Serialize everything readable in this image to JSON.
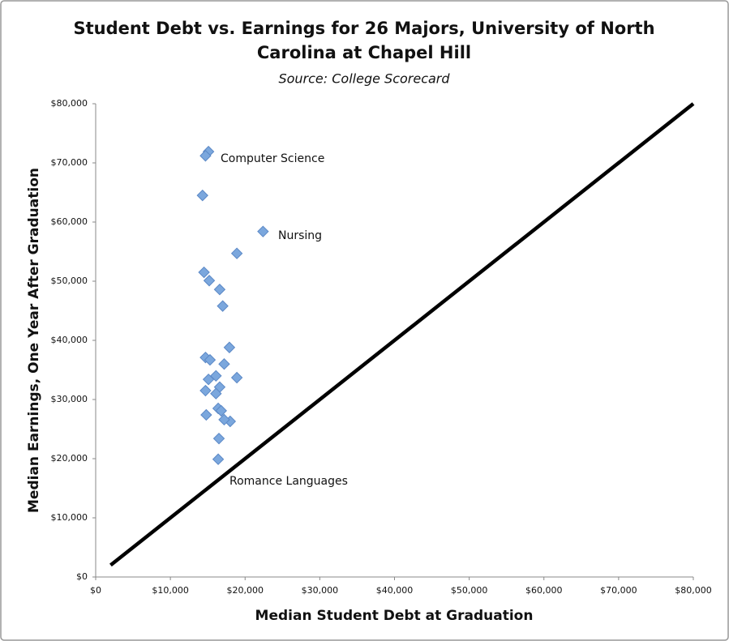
{
  "chart_data": {
    "type": "scatter",
    "title": "Student Debt vs. Earnings for 26 Majors, University of North Carolina at Chapel Hill",
    "subtitle": "Source: College Scorecard",
    "x_label": "Median Student Debt at Graduation",
    "y_label": "Median Earnings, One Year After Graduation",
    "series": [
      {
        "color": "#7ba7dd",
        "x": [
          15100,
          14700,
          14300,
          22400,
          18900,
          14500,
          15200,
          16600,
          17000,
          17900,
          14700,
          15300,
          17200,
          16100,
          18900,
          15100,
          16600,
          14700,
          16100,
          16400,
          16800,
          18000,
          17200,
          14800,
          16500,
          16400
        ],
        "values": [
          71900,
          71200,
          64500,
          58400,
          54700,
          51500,
          50100,
          48600,
          45800,
          38800,
          37100,
          36700,
          36000,
          34000,
          33700,
          33400,
          32100,
          31500,
          31000,
          28500,
          28100,
          26300,
          26600,
          27400,
          23400,
          19900
        ]
      }
    ],
    "reference_line": {
      "color": "#000000",
      "x": [
        2000,
        80000
      ],
      "y": [
        2000,
        80000
      ]
    },
    "annotations": [
      "Computer Science",
      "Nursing",
      "Romance Languages"
    ],
    "xlim": [
      0,
      80000
    ],
    "ylim": [
      0,
      80000
    ],
    "xticks": [
      {
        "value": 0,
        "label": "$0"
      },
      {
        "value": 10000,
        "label": "$10,000"
      },
      {
        "value": 20000,
        "label": "$20,000"
      },
      {
        "value": 30000,
        "label": "$30,000"
      },
      {
        "value": 40000,
        "label": "$40,000"
      },
      {
        "value": 50000,
        "label": "$50,000"
      },
      {
        "value": 60000,
        "label": "$60,000"
      },
      {
        "value": 70000,
        "label": "$70,000"
      },
      {
        "value": 80000,
        "label": "$80,000"
      }
    ],
    "yticks": [
      {
        "value": 0,
        "label": "$0"
      },
      {
        "value": 10000,
        "label": "$10,000"
      },
      {
        "value": 20000,
        "label": "$20,000"
      },
      {
        "value": 30000,
        "label": "$30,000"
      },
      {
        "value": 40000,
        "label": "$40,000"
      },
      {
        "value": 50000,
        "label": "$50,000"
      },
      {
        "value": 60000,
        "label": "$60,000"
      },
      {
        "value": 70000,
        "label": "$70,000"
      },
      {
        "value": 80000,
        "label": "$80,000"
      }
    ],
    "grid": false
  }
}
